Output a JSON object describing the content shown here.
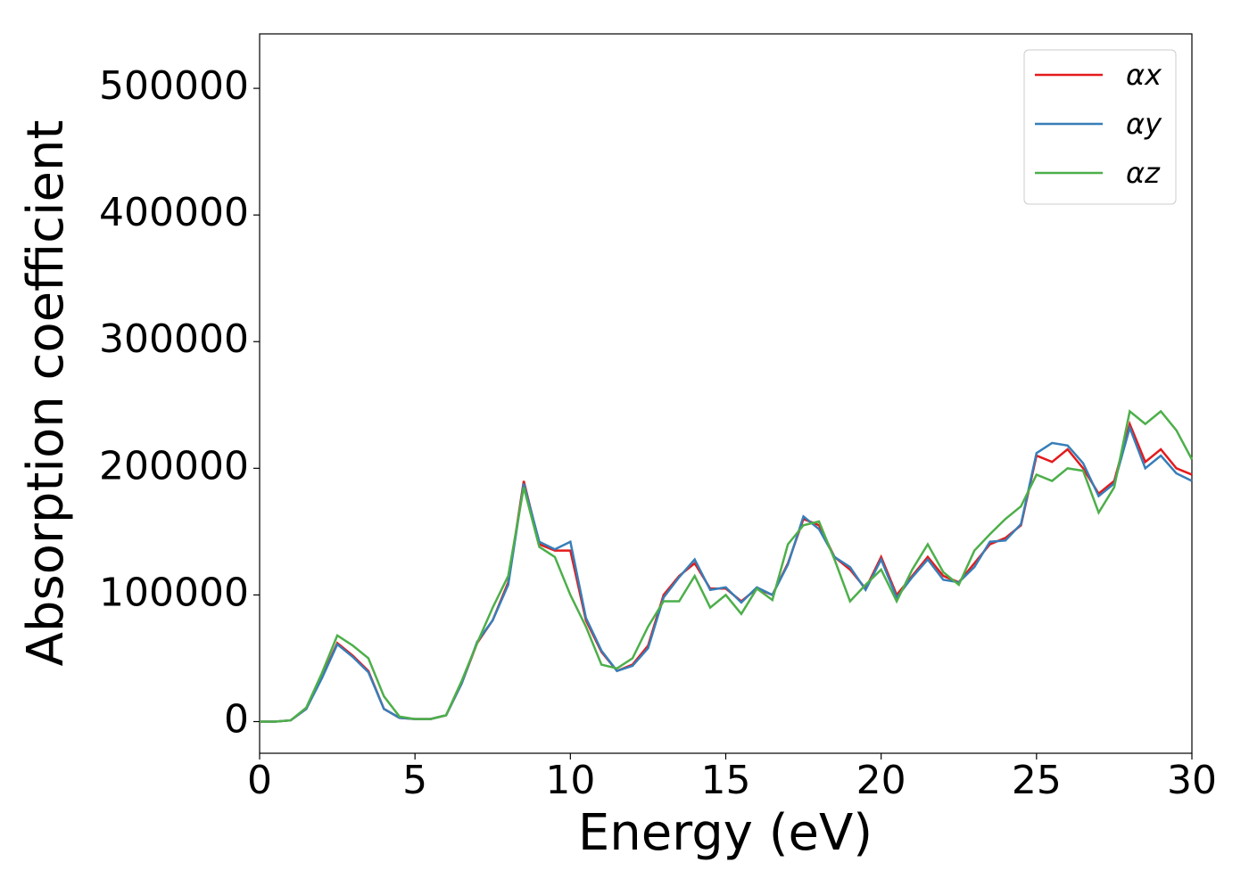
{
  "chart_data": {
    "type": "line",
    "x_label": "Energy (eV)",
    "y_label": "Absorption coefficient",
    "xlim": [
      0,
      30
    ],
    "ylim": [
      -25000,
      543000
    ],
    "xticks": [
      0,
      5,
      10,
      15,
      20,
      25,
      30
    ],
    "yticks": [
      0,
      100000,
      200000,
      300000,
      400000,
      500000
    ],
    "grid": false,
    "legend": "upper right",
    "x": [
      0,
      0.5,
      1,
      1.5,
      2,
      2.5,
      3,
      3.5,
      4,
      4.5,
      5,
      5.5,
      6,
      6.5,
      7,
      7.5,
      8,
      8.5,
      9,
      9.5,
      10,
      10.5,
      11,
      11.5,
      12,
      12.5,
      13,
      13.5,
      14,
      14.5,
      15,
      15.5,
      16,
      16.5,
      17,
      17.5,
      18,
      18.5,
      19,
      19.5,
      20,
      20.5,
      21,
      21.5,
      22,
      22.5,
      23,
      23.5,
      24,
      24.5,
      25,
      25.5,
      26,
      26.5,
      27,
      27.5,
      28,
      28.5,
      29,
      29.5,
      30
    ],
    "series": [
      {
        "name": "αx",
        "color": "#e41a1c",
        "values": [
          0,
          0,
          1000,
          10000,
          35000,
          62000,
          52000,
          40000,
          10000,
          3000,
          2000,
          2000,
          5000,
          30000,
          62000,
          80000,
          110000,
          190000,
          140000,
          135000,
          135000,
          80000,
          55000,
          40000,
          45000,
          60000,
          100000,
          115000,
          125000,
          105000,
          105000,
          95000,
          105000,
          100000,
          125000,
          160000,
          155000,
          130000,
          120000,
          105000,
          130000,
          100000,
          115000,
          130000,
          115000,
          110000,
          125000,
          140000,
          145000,
          155000,
          210000,
          205000,
          215000,
          200000,
          180000,
          190000,
          235000,
          205000,
          215000,
          200000,
          195000
        ]
      },
      {
        "name": "αy",
        "color": "#377eb8",
        "values": [
          0,
          0,
          1000,
          10000,
          34000,
          61000,
          51000,
          39000,
          10000,
          3000,
          2000,
          2000,
          5000,
          30000,
          63000,
          80000,
          108000,
          188000,
          142000,
          136000,
          142000,
          82000,
          56000,
          40000,
          44000,
          58000,
          98000,
          114000,
          128000,
          104000,
          106000,
          94000,
          106000,
          100000,
          124000,
          162000,
          152000,
          130000,
          122000,
          104000,
          128000,
          98000,
          114000,
          128000,
          112000,
          110000,
          122000,
          142000,
          143000,
          156000,
          212000,
          220000,
          218000,
          204000,
          178000,
          188000,
          232000,
          200000,
          210000,
          196000,
          190000
        ]
      },
      {
        "name": "αz",
        "color": "#4daf4a",
        "values": [
          0,
          0,
          1000,
          11000,
          38000,
          68000,
          60000,
          50000,
          20000,
          4000,
          2000,
          2000,
          5000,
          32000,
          62000,
          90000,
          115000,
          185000,
          138000,
          130000,
          100000,
          75000,
          45000,
          42000,
          50000,
          75000,
          95000,
          95000,
          115000,
          90000,
          100000,
          85000,
          105000,
          96000,
          140000,
          155000,
          158000,
          128000,
          95000,
          108000,
          120000,
          95000,
          120000,
          140000,
          118000,
          108000,
          135000,
          148000,
          160000,
          170000,
          195000,
          190000,
          200000,
          198000,
          165000,
          185000,
          245000,
          235000,
          245000,
          230000,
          207000
        ]
      }
    ]
  }
}
